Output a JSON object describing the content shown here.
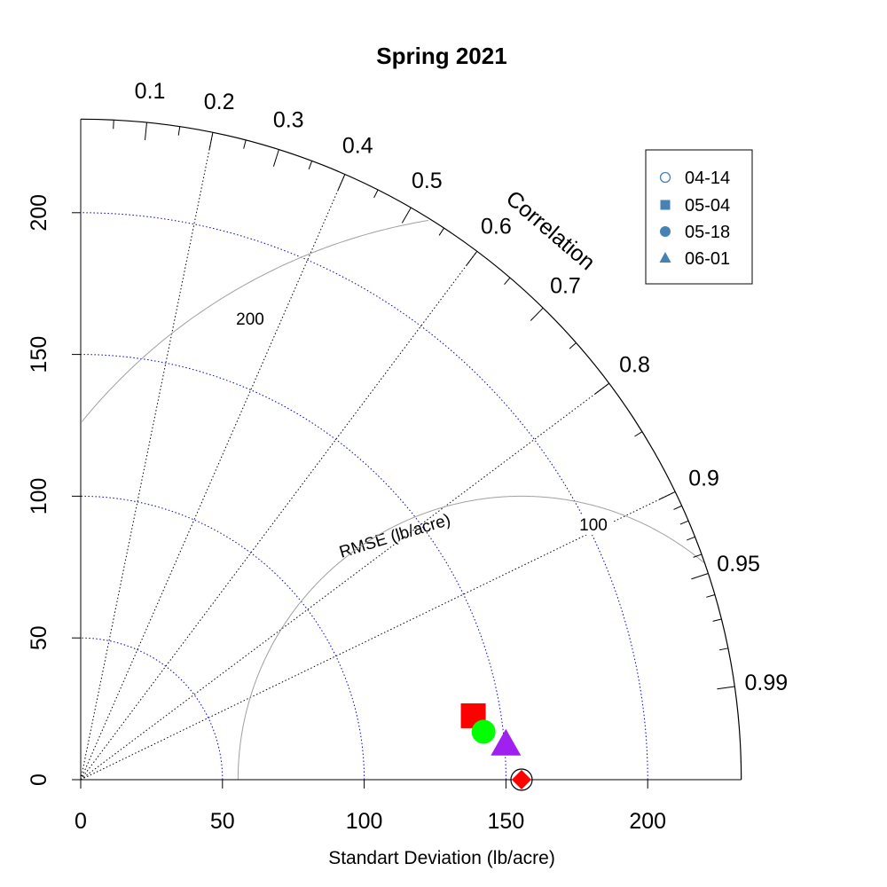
{
  "chart_data": {
    "type": "taylor",
    "title": "Spring 2021",
    "xlabel": "Standart Deviation (lb/acre)",
    "ylabel": "",
    "corr_axis_title": "Correlation",
    "rmse_axis_title": "RMSE (lb/acre)",
    "sd_max": 233,
    "sd_ticks": [
      0,
      50,
      100,
      150,
      200
    ],
    "sd_tick_labels": [
      "0",
      "50",
      "100",
      "150",
      "200"
    ],
    "corr_labeled": [
      0.1,
      0.2,
      0.3,
      0.4,
      0.5,
      0.6,
      0.7,
      0.8,
      0.9,
      0.95,
      0.99
    ],
    "corr_labels": [
      "0.1",
      "0.2",
      "0.3",
      "0.4",
      "0.5",
      "0.6",
      "0.7",
      "0.8",
      "0.9",
      "0.95",
      "0.99"
    ],
    "corr_minor": [
      0.05,
      0.15,
      0.25,
      0.35,
      0.45,
      0.55,
      0.65,
      0.75,
      0.85,
      0.91,
      0.92,
      0.93,
      0.94,
      0.96,
      0.97,
      0.98
    ],
    "corr_lines": [
      0.2,
      0.4,
      0.6,
      0.8,
      0.9
    ],
    "reference": {
      "sd": 155.5,
      "corr": 1.0
    },
    "rmse_contours": [
      100,
      200
    ],
    "rmse_labels": [
      "100",
      "200"
    ],
    "models": [
      {
        "sd": 140.3,
        "corr": 0.987,
        "marker": "square",
        "color": "#ff0000"
      },
      {
        "sd": 143.1,
        "corr": 0.993,
        "marker": "circle",
        "color": "#00ff00"
      },
      {
        "sd": 150.5,
        "corr": 0.9965,
        "marker": "triangle",
        "color": "#a020f0"
      },
      {
        "sd": 155.5,
        "corr": 1.0,
        "marker": "diamond",
        "color": "#ff0000"
      }
    ],
    "legend": {
      "position": "top-right",
      "color": "#4682b4",
      "entries": [
        {
          "label": "04-14",
          "marker": "open-circle"
        },
        {
          "label": "05-04",
          "marker": "square"
        },
        {
          "label": "05-18",
          "marker": "circle"
        },
        {
          "label": "06-01",
          "marker": "triangle"
        }
      ]
    },
    "colors": {
      "sd_arcs": "#0000cd",
      "corr_lines": "#000000",
      "rmse_arcs": "#a0a0a0",
      "frame": "#000000"
    }
  }
}
